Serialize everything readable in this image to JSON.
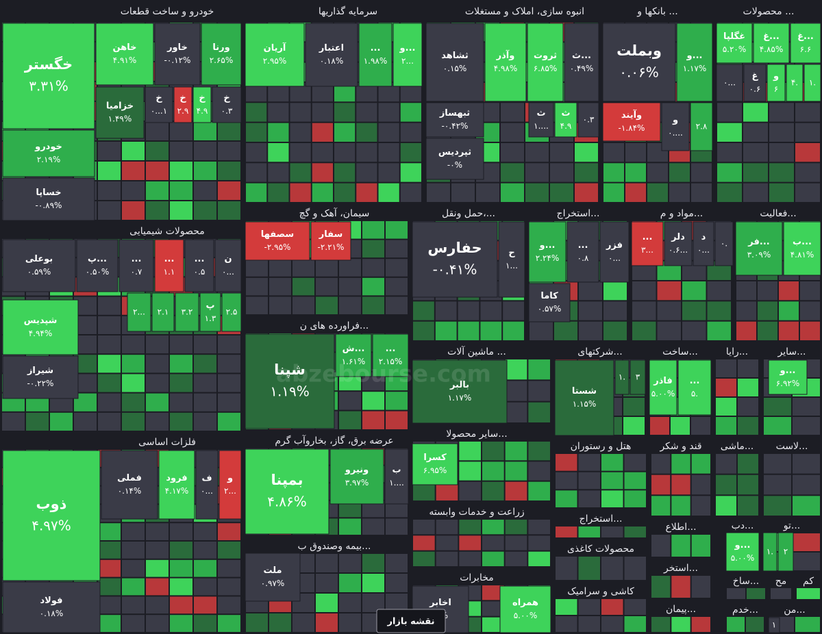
{
  "sectors": [
    {
      "title": "خودرو و ساخت قطعات",
      "tiles": [
        {
          "name": "خگستر",
          "change": "۳.۳۱%"
        },
        {
          "name": "خودرو",
          "change": "۲.۱۹%"
        },
        {
          "name": "خساپا",
          "change": "-۰.۸۹%"
        },
        {
          "name": "خاهن",
          "change": "۴.۹۱%"
        },
        {
          "name": "خاور",
          "change": "-۰.۱۲%"
        },
        {
          "name": "ورنا",
          "change": "۲.۶۵%"
        },
        {
          "name": "خزامیا",
          "change": "۱.۴۹%"
        },
        {
          "name": "خ",
          "change": "۰...۱"
        },
        {
          "name": "خ",
          "change": "۲.۹"
        },
        {
          "name": "خ",
          "change": "۴.۹"
        },
        {
          "name": "خ",
          "change": "۰.۳"
        }
      ]
    },
    {
      "title": "سرمایه گذاریها",
      "tiles": [
        {
          "name": "آریان",
          "change": "۲.۹۵%"
        },
        {
          "name": "اعتبار",
          "change": "۰.۱۸%"
        },
        {
          "name": "...",
          "change": "۱.۹۸%"
        },
        {
          "name": "و...",
          "change": "۲..."
        }
      ]
    },
    {
      "title": "انبوه سازی، املاک و مستغلات",
      "tiles": [
        {
          "name": "ثشاهد",
          "change": "۰.۱۵%"
        },
        {
          "name": "وآذر",
          "change": "۴.۹۸%"
        },
        {
          "name": "ثروت",
          "change": "۶.۸۵%"
        },
        {
          "name": "ث...",
          "change": "۰.۴۹%"
        },
        {
          "name": "ثبهساز",
          "change": "-۰.۴۲%"
        },
        {
          "name": "ثپردیس",
          "change": "-۰%"
        },
        {
          "name": "ث",
          "change": "۱...."
        },
        {
          "name": "ث",
          "change": "۴.۹"
        },
        {
          "change": "۰.۳"
        }
      ]
    },
    {
      "title": "بانکها و ...",
      "tiles": [
        {
          "name": "وبملت",
          "change": "۰.۰۶%"
        },
        {
          "name": "و...",
          "change": "۱.۱۷%"
        },
        {
          "name": "وآیند",
          "change": "-۱.۸۴%"
        },
        {
          "name": "و",
          "change": "۰...."
        },
        {
          "change": "۲.۸"
        }
      ]
    },
    {
      "title": "محصولات ...",
      "tiles": [
        {
          "name": "غگلپا",
          "change": "۵.۲۰%"
        },
        {
          "name": "غ...",
          "change": "۴.۸۵%"
        },
        {
          "name": "غ...",
          "change": "۶.۶"
        },
        {
          "change": "۰..."
        },
        {
          "name": "غ",
          "change": "۰.۶"
        },
        {
          "name": "و",
          "change": "۶"
        },
        {
          "change": "۴."
        },
        {
          "change": "۱."
        }
      ]
    },
    {
      "title": "محصولات شیمیایی",
      "tiles": [
        {
          "name": "بوعلی",
          "change": "۰.۵۹%"
        },
        {
          "name": "پ...",
          "change": "۰.۵۰%"
        },
        {
          "name": "...",
          "change": "۰.۷"
        },
        {
          "name": "...",
          "change": "۱.۱"
        },
        {
          "name": "...",
          "change": "۰.۵"
        },
        {
          "name": "ن",
          "change": "۰..."
        },
        {
          "name": "شپدیس",
          "change": "۴.۹۴%"
        },
        {
          "name": "شیراز",
          "change": "-۰.۲۲%"
        },
        {
          "change": "۲..."
        },
        {
          "change": "۲.۱"
        },
        {
          "change": "۳.۲"
        },
        {
          "name": "پ",
          "change": "۱.۳"
        },
        {
          "change": "۲.۵"
        }
      ]
    },
    {
      "title": "فلزات اساسی",
      "tiles": [
        {
          "name": "ذوب",
          "change": "۴.۹۷%"
        },
        {
          "name": "فولاد",
          "change": "۰.۱۸%"
        },
        {
          "name": "فملی",
          "change": "۰.۱۴%"
        },
        {
          "name": "فرود",
          "change": "۴.۱۷%"
        },
        {
          "name": "ف",
          "change": "۰..."
        },
        {
          "name": "و",
          "change": "۲..."
        }
      ]
    },
    {
      "title": "سیمان، آهک و گچ",
      "tiles": [
        {
          "name": "سصفها",
          "change": "-۲.۹۵%"
        },
        {
          "name": "سفار",
          "change": "-۲.۲۱%"
        }
      ]
    },
    {
      "title": "فراورده های ن...",
      "tiles": [
        {
          "name": "شپنا",
          "change": "۱.۱۹%"
        },
        {
          "name": "ش...",
          "change": "۱.۶۱%"
        },
        {
          "name": "...",
          "change": "۲.۱۵%"
        }
      ]
    },
    {
      "title": "عرضه برق، گاز، بخاروآب گرم",
      "tiles": [
        {
          "name": "بمپنا",
          "change": "۴.۸۶%"
        },
        {
          "name": "ونیرو",
          "change": "۳.۹۷%"
        },
        {
          "name": "ب",
          "change": "۱...."
        }
      ]
    },
    {
      "title": "بیمه وصندوق ب...",
      "tiles": [
        {
          "name": "ملت",
          "change": "۰.۹۷%"
        }
      ]
    },
    {
      "title": "حمل ونقل،...",
      "tiles": [
        {
          "name": "حفارس",
          "change": "-۰.۴۱%"
        },
        {
          "name": "ح",
          "change": "۱..."
        }
      ]
    },
    {
      "title": "استخراج...",
      "tiles": [
        {
          "name": "و...",
          "change": "۲.۲۴%"
        },
        {
          "name": "...",
          "change": "۰.۸"
        },
        {
          "name": "فزر",
          "change": "۰..."
        },
        {
          "name": "کاما",
          "change": "۰.۵۷%"
        }
      ]
    },
    {
      "title": "مواد و م...",
      "tiles": [
        {
          "name": "...",
          "change": "۳..."
        },
        {
          "name": "دلر",
          "change": "۰.۶..."
        },
        {
          "name": "د",
          "change": "۰..."
        },
        {
          "change": "۰."
        }
      ]
    },
    {
      "title": "فعالیت...",
      "tiles": [
        {
          "name": "فر...",
          "change": "۳.۰۹%"
        },
        {
          "name": "ب...",
          "change": "۴.۸۱%"
        }
      ]
    },
    {
      "title": "ماشین آلات ...",
      "tiles": [
        {
          "name": "بالبر",
          "change": "۱.۱۷%"
        }
      ]
    },
    {
      "title": "شرکتهای...",
      "tiles": [
        {
          "name": "شستا",
          "change": "۱.۱۵%"
        },
        {
          "change": "۱."
        },
        {
          "change": "۳"
        }
      ]
    },
    {
      "title": "ساخت...",
      "tiles": [
        {
          "name": "فاذر",
          "change": "۵.۰۰%"
        },
        {
          "name": "...",
          "change": "۵."
        }
      ]
    },
    {
      "title": "رایا...",
      "tiles": []
    },
    {
      "title": "سایر...",
      "tiles": [
        {
          "name": "و...",
          "change": "۶.۹۲%"
        }
      ]
    },
    {
      "title": "سایر محصولا...",
      "tiles": [
        {
          "name": "کسرا",
          "change": "۶.۹۵%"
        }
      ]
    },
    {
      "title": "زراعت و خدمات وابسته",
      "tiles": []
    },
    {
      "title": "مخابرات",
      "tiles": [
        {
          "name": "اخابر",
          "change": "-۰%"
        },
        {
          "name": "همراه",
          "change": "۵.۰۰%"
        }
      ]
    },
    {
      "title": "هتل و رستوران",
      "tiles": []
    },
    {
      "title": "قند و شکر",
      "tiles": []
    },
    {
      "title": "ماشی...",
      "tiles": []
    },
    {
      "title": "لاست...",
      "tiles": []
    },
    {
      "title": "استخراج...",
      "tiles": []
    },
    {
      "title": "محصولات کاغذی",
      "tiles": []
    },
    {
      "title": "کاشی و سرامیک",
      "tiles": []
    },
    {
      "title": "اطلاع...",
      "tiles": []
    },
    {
      "title": "استخر...",
      "tiles": []
    },
    {
      "title": "پیمان...",
      "tiles": []
    },
    {
      "title": "دب...",
      "tiles": [
        {
          "name": "و...",
          "change": "۵.۰۰%"
        }
      ]
    },
    {
      "title": "تو...",
      "tiles": [
        {
          "change": "۱."
        },
        {
          "change": "۲"
        }
      ]
    },
    {
      "title": "ساخ...",
      "tiles": []
    },
    {
      "title": "مح",
      "tiles": []
    },
    {
      "title": "کم",
      "tiles": []
    },
    {
      "title": "خدم...",
      "tiles": []
    },
    {
      "title": "من...",
      "tiles": [
        {
          "change": "۱"
        }
      ]
    }
  ],
  "watermark": "abzebourse.com",
  "button": "نقشه بازار"
}
